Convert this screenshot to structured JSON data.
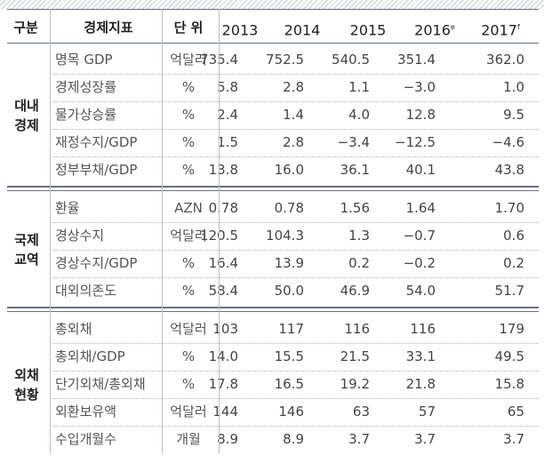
{
  "header": {
    "category": "구분",
    "indicator": "경제지표",
    "unit": "단 위",
    "years": [
      "2013",
      "2014",
      "2015",
      "2016",
      "2017"
    ],
    "year_sup": [
      "",
      "",
      "",
      "e",
      "f"
    ]
  },
  "groups": [
    {
      "label_line1": "대내",
      "label_line2": "경제",
      "rows": [
        {
          "indicator": "명목 GDP",
          "unit": "억달러",
          "values": [
            "735.4",
            "752.5",
            "540.5",
            "351.4",
            "362.0"
          ]
        },
        {
          "indicator": "경제성장률",
          "unit": "%",
          "values": [
            "5.8",
            "2.8",
            "1.1",
            "−3.0",
            "1.0"
          ]
        },
        {
          "indicator": "물가상승률",
          "unit": "%",
          "values": [
            "2.4",
            "1.4",
            "4.0",
            "12.8",
            "9.5"
          ]
        },
        {
          "indicator": "재정수지/GDP",
          "unit": "%",
          "values": [
            "1.5",
            "2.8",
            "−3.4",
            "−12.5",
            "−4.6"
          ]
        },
        {
          "indicator": "정부부채/GDP",
          "unit": "%",
          "values": [
            "13.8",
            "16.0",
            "36.1",
            "40.1",
            "43.8"
          ]
        }
      ]
    },
    {
      "label_line1": "국제",
      "label_line2": "교역",
      "rows": [
        {
          "indicator": "환율",
          "unit": "AZN",
          "values": [
            "0.78",
            "0.78",
            "1.56",
            "1.64",
            "1.70"
          ]
        },
        {
          "indicator": "경상수지",
          "unit": "억달러",
          "values": [
            "120.5",
            "104.3",
            "1.3",
            "−0.7",
            "0.6"
          ]
        },
        {
          "indicator": "경상수지/GDP",
          "unit": "%",
          "values": [
            "16.4",
            "13.9",
            "0.2",
            "−0.2",
            "0.2"
          ]
        },
        {
          "indicator": "대외의존도",
          "unit": "%",
          "values": [
            "58.4",
            "50.0",
            "46.9",
            "54.0",
            "51.7"
          ]
        }
      ]
    },
    {
      "label_line1": "외채",
      "label_line2": "현황",
      "rows": [
        {
          "indicator": "총외채",
          "unit": "억달러",
          "values": [
            "103",
            "117",
            "116",
            "116",
            "179"
          ]
        },
        {
          "indicator": "총외채/GDP",
          "unit": "%",
          "values": [
            "14.0",
            "15.5",
            "21.5",
            "33.1",
            "49.5"
          ]
        },
        {
          "indicator": "단기외채/총외채",
          "unit": "%",
          "values": [
            "17.8",
            "16.5",
            "19.2",
            "21.8",
            "15.8"
          ]
        },
        {
          "indicator": "외환보유액",
          "unit": "억달러",
          "values": [
            "144",
            "146",
            "63",
            "57",
            "65"
          ]
        },
        {
          "indicator": "수입개월수",
          "unit": "개월",
          "values": [
            "8.9",
            "8.9",
            "3.7",
            "3.7",
            "3.7"
          ]
        }
      ]
    }
  ]
}
